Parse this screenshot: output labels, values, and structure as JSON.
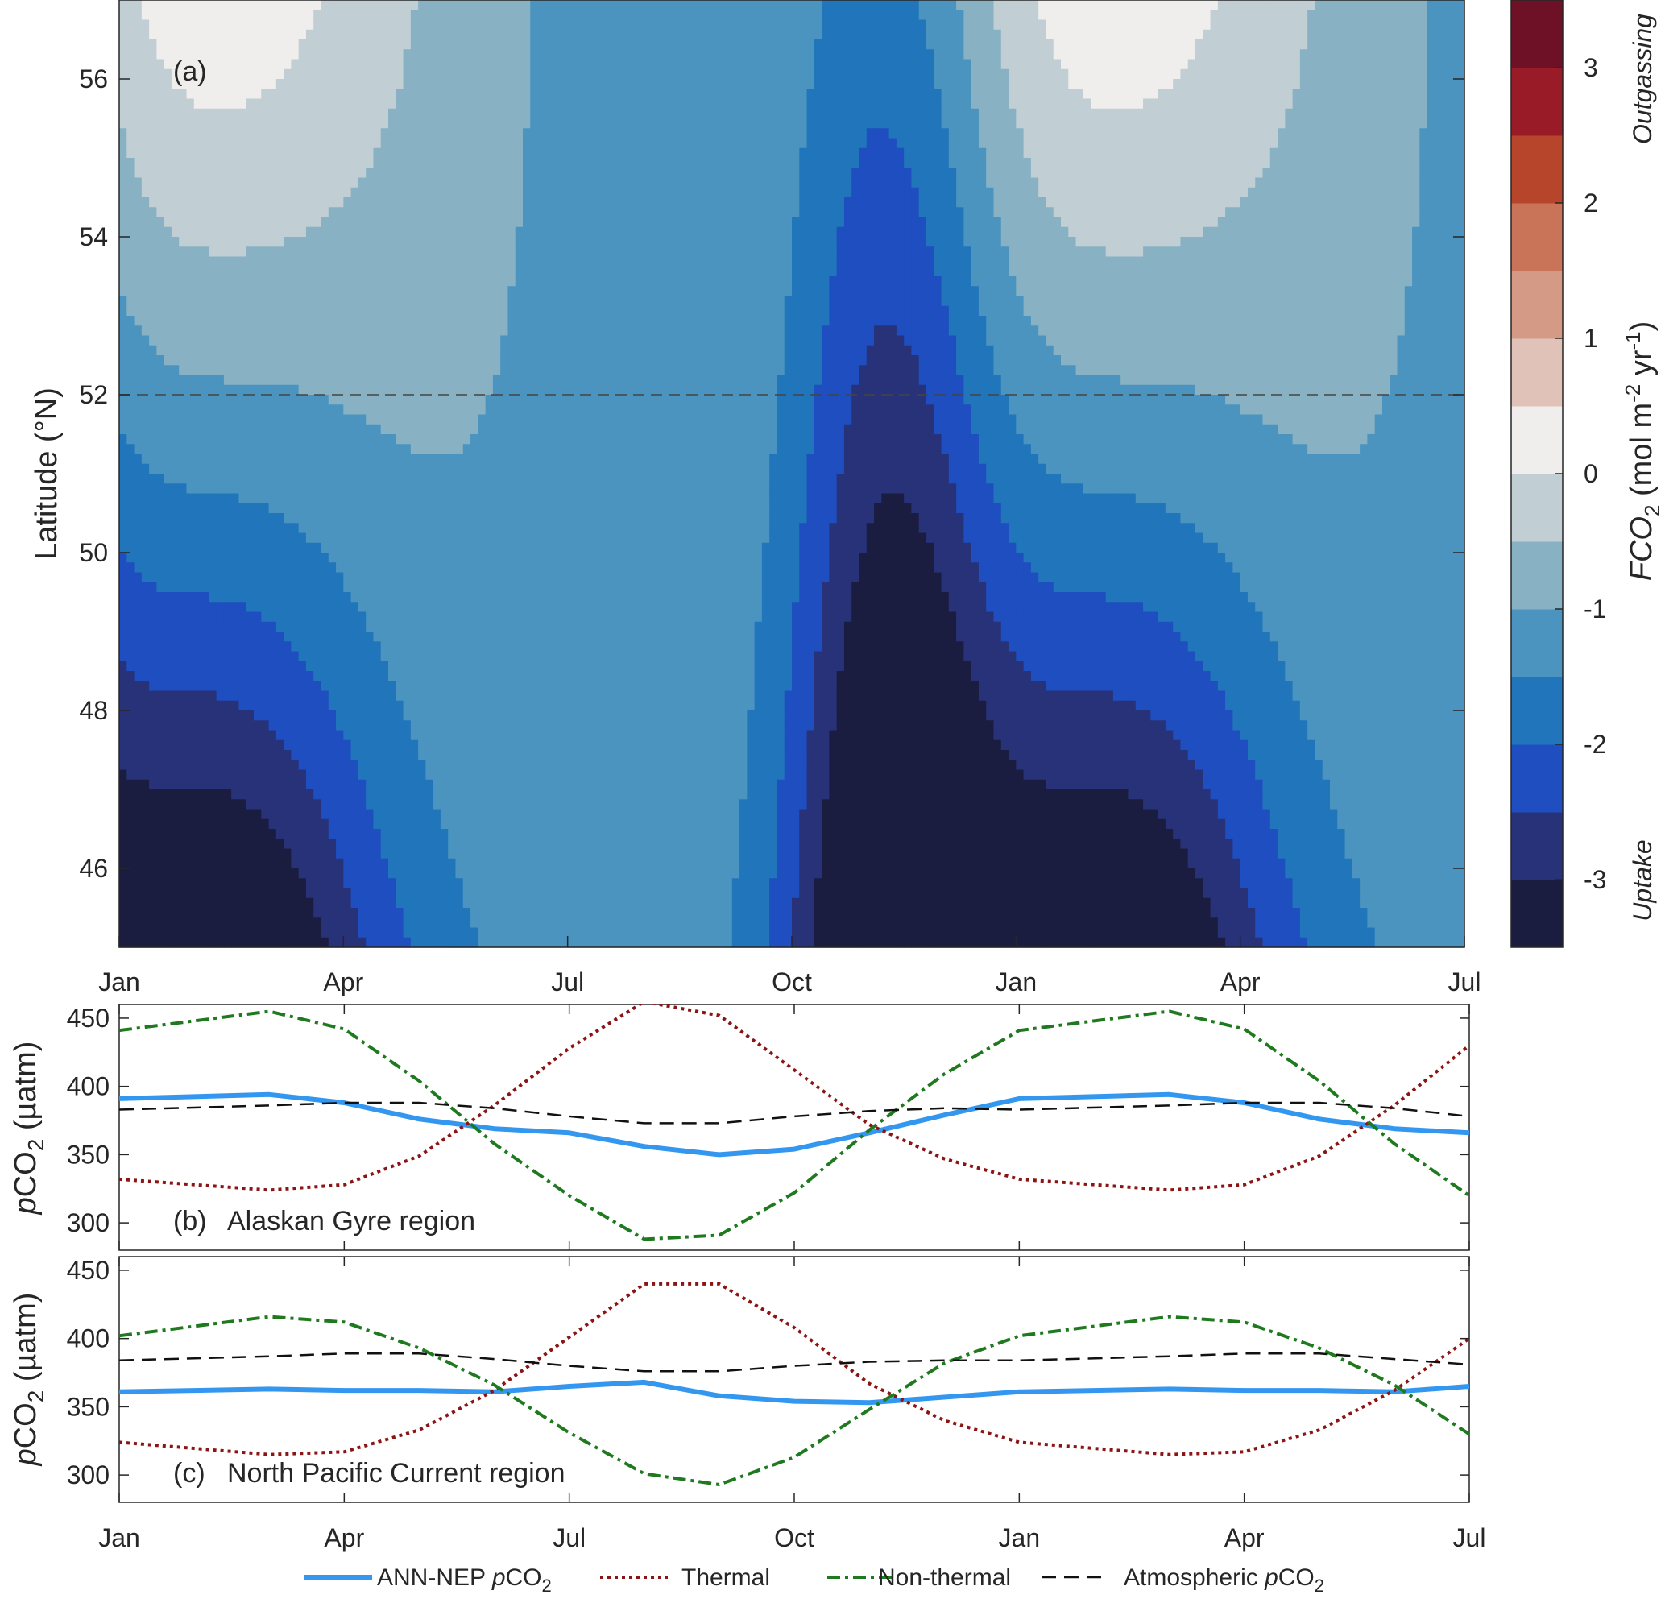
{
  "chart_data": [
    {
      "type": "heatmap",
      "panel": "(a)",
      "ylabel": "Latitude (°N)",
      "x_ticks": [
        "Jan",
        "Apr",
        "Jul",
        "Oct",
        "Jan",
        "Apr",
        "Jul"
      ],
      "x_tick_months": [
        0,
        3,
        6,
        9,
        12,
        15,
        18
      ],
      "y_ticks": [
        46,
        48,
        50,
        52,
        54,
        56
      ],
      "ylim": [
        45,
        57
      ],
      "reference_line": 52,
      "colorbar": {
        "label": "FCO2 (mol m-2 yr-1)",
        "label_main": "FCO",
        "label_sub": "2",
        "label_unit": " (mol m",
        "label_sup1": "-2",
        "label_unit2": " yr",
        "label_sup2": "-1",
        "label_close": ")",
        "ticks": [
          -3,
          -2,
          -1,
          0,
          1,
          2,
          3
        ],
        "range": [
          -3.5,
          3.5
        ],
        "top_label": "Outgassing",
        "bottom_label": "Uptake",
        "levels": [
          {
            "value": -3.25,
            "color": "#1a1d40"
          },
          {
            "value": -2.75,
            "color": "#283279"
          },
          {
            "value": -2.25,
            "color": "#1e4ebf"
          },
          {
            "value": -1.75,
            "color": "#2176bb"
          },
          {
            "value": -1.25,
            "color": "#4a94bf"
          },
          {
            "value": -0.75,
            "color": "#88b2c4"
          },
          {
            "value": -0.25,
            "color": "#c1ced4"
          },
          {
            "value": 0.25,
            "color": "#f0eeed"
          },
          {
            "value": 0.75,
            "color": "#e1c2b8"
          },
          {
            "value": 1.25,
            "color": "#d49a86"
          },
          {
            "value": 1.75,
            "color": "#c97358"
          },
          {
            "value": 2.25,
            "color": "#b6452c"
          },
          {
            "value": 2.75,
            "color": "#991b28"
          },
          {
            "value": 3.25,
            "color": "#6e1126"
          },
          {
            "value": 3.75,
            "color": "#3c0a14"
          }
        ]
      }
    },
    {
      "type": "line",
      "panel": "(b)",
      "title": "Alaskan Gyre region",
      "ylabel": "pCO2 (µatm)",
      "ylabel_main": "p",
      "ylabel_co": "CO",
      "ylabel_sub": "2",
      "ylabel_unit": " (µatm)",
      "ylim": [
        280,
        460
      ],
      "y_ticks": [
        300,
        350,
        400,
        450
      ],
      "x_ticks": [
        "Jan",
        "Apr",
        "Jul",
        "Oct",
        "Jan",
        "Apr",
        "Jul"
      ],
      "x_tick_months": [
        0,
        3,
        6,
        9,
        12,
        15,
        18
      ],
      "x": [
        0,
        2,
        3,
        4,
        5,
        6,
        7,
        8,
        9,
        10,
        11,
        12,
        14,
        15,
        16,
        17,
        18
      ],
      "series": [
        {
          "name": "ANN-NEP pCO2",
          "key": "ann",
          "values": [
            391,
            394,
            388,
            376,
            369,
            366,
            356,
            350,
            354,
            366,
            379,
            391,
            394,
            388,
            376,
            369,
            366
          ]
        },
        {
          "name": "Thermal",
          "key": "thermal",
          "values": [
            332,
            324,
            328,
            349,
            386,
            428,
            462,
            452,
            412,
            372,
            347,
            332,
            324,
            328,
            349,
            386,
            430
          ]
        },
        {
          "name": "Non-thermal",
          "key": "nonthermal",
          "values": [
            441,
            455,
            442,
            404,
            358,
            320,
            288,
            291,
            322,
            368,
            409,
            441,
            455,
            442,
            404,
            358,
            320
          ]
        },
        {
          "name": "Atmospheric pCO2",
          "key": "atm",
          "values": [
            383,
            386,
            388,
            388,
            384,
            378,
            373,
            373,
            378,
            382,
            384,
            383,
            386,
            388,
            388,
            384,
            378
          ]
        }
      ]
    },
    {
      "type": "line",
      "panel": "(c)",
      "title": "North Pacific Current region",
      "ylabel": "pCO2 (µatm)",
      "ylabel_main": "p",
      "ylabel_co": "CO",
      "ylabel_sub": "2",
      "ylabel_unit": " (µatm)",
      "ylim": [
        280,
        460
      ],
      "y_ticks": [
        300,
        350,
        400,
        450
      ],
      "x_ticks": [
        "Jan",
        "Apr",
        "Jul",
        "Oct",
        "Jan",
        "Apr",
        "Jul"
      ],
      "x_tick_months": [
        0,
        3,
        6,
        9,
        12,
        15,
        18
      ],
      "x": [
        0,
        2,
        3,
        4,
        5,
        6,
        7,
        8,
        9,
        10,
        11,
        12,
        14,
        15,
        16,
        17,
        18
      ],
      "series": [
        {
          "name": "ANN-NEP pCO2",
          "key": "ann",
          "values": [
            361,
            363,
            362,
            362,
            361,
            365,
            368,
            358,
            354,
            353,
            357,
            361,
            363,
            362,
            362,
            361,
            365
          ]
        },
        {
          "name": "Thermal",
          "key": "thermal",
          "values": [
            324,
            315,
            317,
            333,
            362,
            401,
            440,
            440,
            408,
            367,
            340,
            324,
            315,
            317,
            333,
            362,
            400
          ]
        },
        {
          "name": "Non-thermal",
          "key": "nonthermal",
          "values": [
            402,
            416,
            412,
            393,
            366,
            331,
            301,
            293,
            313,
            348,
            382,
            402,
            416,
            412,
            393,
            366,
            330
          ]
        },
        {
          "name": "Atmospheric pCO2",
          "key": "atm",
          "values": [
            384,
            387,
            389,
            389,
            385,
            380,
            376,
            376,
            380,
            383,
            384,
            384,
            387,
            389,
            389,
            385,
            381
          ]
        }
      ]
    }
  ],
  "legend": {
    "items": [
      {
        "key": "ann",
        "text_pre": "ANN-NEP ",
        "text_italic": "p",
        "text_post": "CO",
        "text_sub": "2"
      },
      {
        "key": "thermal",
        "text_pre": "Thermal",
        "text_italic": "",
        "text_post": "",
        "text_sub": ""
      },
      {
        "key": "nonthermal",
        "text_pre": "Non-thermal",
        "text_italic": "",
        "text_post": "",
        "text_sub": ""
      },
      {
        "key": "atm",
        "text_pre": "Atmospheric ",
        "text_italic": "p",
        "text_post": "CO",
        "text_sub": "2"
      }
    ]
  },
  "styles": {
    "ann": {
      "color": "#3397f0"
    },
    "thermal": {
      "color": "#8b1414"
    },
    "nonthermal": {
      "color": "#1f7a1f"
    },
    "atm": {
      "color": "#111111"
    }
  }
}
